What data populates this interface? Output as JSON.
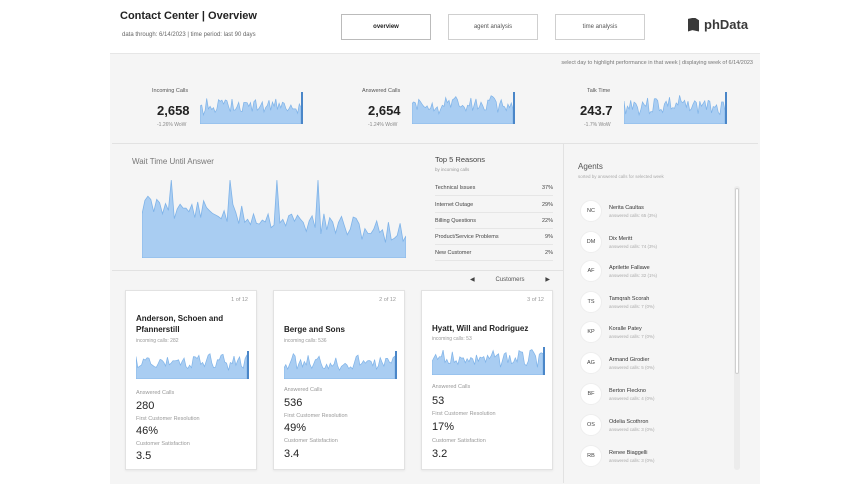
{
  "header": {
    "title": "Contact Center | Overview",
    "subtitle": "data through: 6/14/2023 | time period: last 90 days",
    "tabs": [
      {
        "label": "overview",
        "active": true
      },
      {
        "label": "agent analysis",
        "active": false
      },
      {
        "label": "time analysis",
        "active": false
      }
    ],
    "logo_text": "phData"
  },
  "hint": "select day to highlight performance in that week | displaying week of 6/14/2023",
  "colors": {
    "accent": "#7fb3e8",
    "accent_fill": "#a9cdf2",
    "accent_dark": "#4a86c8"
  },
  "kpis": [
    {
      "label": "Incoming Calls",
      "value": "2,658",
      "delta": "-1.26% WoW"
    },
    {
      "label": "Answered Calls",
      "value": "2,654",
      "delta": "-1.24% WoW"
    },
    {
      "label": "Talk Time",
      "value": "243.7",
      "delta": "-1.7% WoW"
    }
  ],
  "wait_time": {
    "title": "Wait Time Until Answer"
  },
  "reasons": {
    "title": "Top 5 Reasons",
    "subtitle": "by incoming calls",
    "items": [
      {
        "label": "Technical Issues",
        "value": "37%"
      },
      {
        "label": "Internet Outage",
        "value": "29%"
      },
      {
        "label": "Billing Questions",
        "value": "22%"
      },
      {
        "label": "Product/Service Problems",
        "value": "9%"
      },
      {
        "label": "New Customer",
        "value": "2%"
      }
    ]
  },
  "customers": {
    "pager_label": "Customers",
    "prev_icon": "triangle-left-icon",
    "next_icon": "triangle-right-icon",
    "cards": [
      {
        "index": "1 of 12",
        "name": "Anderson, Schoen and Pfannerstill",
        "incoming": "incoming calls: 282",
        "answered_label": "Answered Calls",
        "answered": "280",
        "fcr_label": "First Customer Resolution",
        "fcr": "46%",
        "csat_label": "Customer Satisfaction",
        "csat": "3.5"
      },
      {
        "index": "2 of 12",
        "name": "Berge and Sons",
        "incoming": "incoming calls: 536",
        "answered_label": "Answered Calls",
        "answered": "536",
        "fcr_label": "First Customer Resolution",
        "fcr": "49%",
        "csat_label": "Customer Satisfaction",
        "csat": "3.4"
      },
      {
        "index": "3 of 12",
        "name": "Hyatt, Will and Rodriguez",
        "incoming": "incoming calls: 53",
        "answered_label": "Answered Calls",
        "answered": "53",
        "fcr_label": "First Customer Resolution",
        "fcr": "17%",
        "csat_label": "Customer Satisfaction",
        "csat": "3.2"
      }
    ]
  },
  "agents": {
    "title": "Agents",
    "subtitle": "sorted by answered calls for selected week",
    "items": [
      {
        "initials": "NC",
        "name": "Nerita Caultas",
        "calls": "answered calls: 65 (3%)"
      },
      {
        "initials": "DM",
        "name": "Dix Meritt",
        "calls": "answered calls: 74 (3%)"
      },
      {
        "initials": "AF",
        "name": "Aprilette Fallawe",
        "calls": "answered calls: 32 (1%)"
      },
      {
        "initials": "TS",
        "name": "Tamqrah Scorah",
        "calls": "answered calls: 7 (0%)"
      },
      {
        "initials": "KP",
        "name": "Koralle Patey",
        "calls": "answered calls: 7 (0%)"
      },
      {
        "initials": "AG",
        "name": "Armand Girodier",
        "calls": "answered calls: 5 (0%)"
      },
      {
        "initials": "BF",
        "name": "Berton Fleckno",
        "calls": "answered calls: 4 (0%)"
      },
      {
        "initials": "OS",
        "name": "Odelia Scothron",
        "calls": "answered calls: 3 (0%)"
      },
      {
        "initials": "RB",
        "name": "Renee Biaggelli",
        "calls": "answered calls: 3 (0%)"
      }
    ]
  }
}
